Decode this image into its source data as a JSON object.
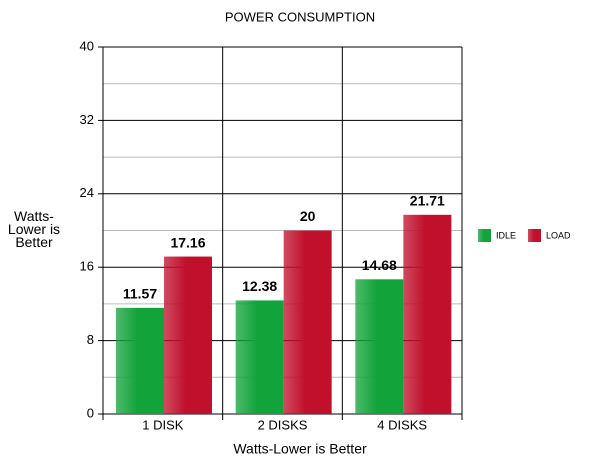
{
  "chart_data": {
    "type": "bar",
    "title": "POWER CONSUMPTION",
    "x_label": "Watts-Lower is Better",
    "y_label": "Watts-Lower is Better",
    "categories": [
      "1 DISK",
      "2 DISKS",
      "4 DISKS"
    ],
    "series": [
      {
        "name": "IDLE",
        "color": "#12a33a",
        "values": [
          11.57,
          12.38,
          14.68
        ]
      },
      {
        "name": "LOAD",
        "color": "#c0102c",
        "values": [
          17.16,
          20,
          21.71
        ]
      }
    ],
    "ylim": [
      0,
      40
    ],
    "yticks": [
      0,
      8,
      16,
      24,
      32,
      40
    ],
    "grid": true,
    "legend": "right"
  }
}
